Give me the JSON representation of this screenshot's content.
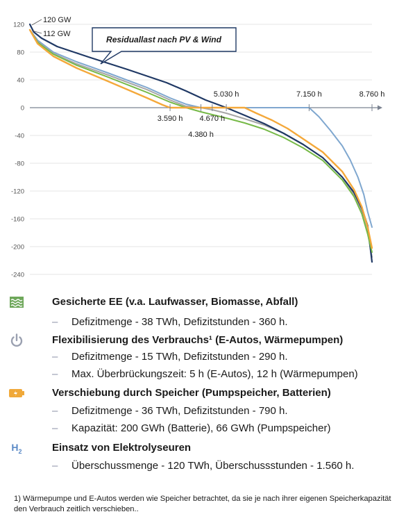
{
  "chart_data": {
    "type": "line",
    "title": "",
    "xlabel": "",
    "ylabel": "",
    "xlim": [
      0,
      8760
    ],
    "ylim": [
      -240,
      120
    ],
    "yticks": [
      120,
      80,
      40,
      0,
      -40,
      -80,
      -120,
      -160,
      -200,
      -240
    ],
    "callout": "Residuallast nach PV & Wind",
    "peak_labels": [
      "120 GW",
      "112 GW"
    ],
    "x_markers": [
      {
        "x": 3590,
        "label": "3.590 h",
        "pos": "below"
      },
      {
        "x": 4380,
        "label": "4.380 h",
        "pos": "below"
      },
      {
        "x": 4670,
        "label": "4.670 h",
        "pos": "below"
      },
      {
        "x": 5030,
        "label": "5.030 h",
        "pos": "above"
      },
      {
        "x": 7150,
        "label": "7.150 h",
        "pos": "above"
      },
      {
        "x": 8760,
        "label": "8.760 h",
        "pos": "above"
      }
    ],
    "series": [
      {
        "color": "#7fa7cf",
        "width": 2,
        "x": [
          0,
          200,
          600,
          1200,
          2000,
          3000,
          3590,
          4000,
          4380,
          4670,
          5030,
          5500,
          6000,
          6500,
          7000,
          7150,
          7400,
          7700,
          8000,
          8200,
          8400,
          8550,
          8650,
          8760
        ],
        "y": [
          112,
          97,
          80,
          66,
          50,
          29,
          14,
          5,
          0,
          0,
          0,
          0,
          0,
          0,
          0,
          0,
          -13,
          -33,
          -55,
          -75,
          -100,
          -125,
          -150,
          -172
        ]
      },
      {
        "color": "#a6a6a6",
        "width": 2,
        "x": [
          0,
          200,
          600,
          1200,
          2000,
          3000,
          3590,
          4000,
          4380,
          4670,
          5030,
          5500,
          6000,
          6500,
          7000,
          7500,
          8000,
          8300,
          8500,
          8650,
          8760
        ],
        "y": [
          112,
          95,
          78,
          63,
          47,
          26,
          11,
          2,
          0,
          -3,
          -8,
          -16,
          -25,
          -37,
          -53,
          -72,
          -100,
          -125,
          -150,
          -180,
          -215
        ]
      },
      {
        "color": "#1f3864",
        "width": 2.2,
        "x": [
          0,
          100,
          300,
          700,
          1500,
          2500,
          3500,
          4000,
          4500,
          5030,
          5500,
          6000,
          6500,
          7000,
          7500,
          8000,
          8300,
          8500,
          8650,
          8760
        ],
        "y": [
          120,
          109,
          100,
          88,
          73,
          55,
          36,
          24,
          11,
          0,
          -11,
          -23,
          -37,
          -53,
          -72,
          -100,
          -122,
          -145,
          -170,
          -222
        ]
      },
      {
        "color": "#76b947",
        "width": 2,
        "x": [
          0,
          200,
          600,
          1200,
          2000,
          3000,
          3590,
          4000,
          4380,
          4670,
          5030,
          5500,
          6000,
          6500,
          7000,
          7500,
          8000,
          8300,
          8500,
          8650,
          8760
        ],
        "y": [
          112,
          94,
          77,
          61,
          44,
          22,
          8,
          0,
          -6,
          -10,
          -15,
          -22,
          -31,
          -43,
          -58,
          -76,
          -104,
          -128,
          -153,
          -182,
          -208
        ]
      },
      {
        "color": "#f4a83a",
        "width": 2.4,
        "x": [
          0,
          200,
          600,
          1200,
          2000,
          3000,
          3400,
          3590,
          4000,
          5030,
          5500,
          5800,
          6200,
          6600,
          7000,
          7500,
          8000,
          8300,
          8500,
          8650,
          8760
        ],
        "y": [
          112,
          92,
          74,
          57,
          38,
          14,
          4,
          0,
          0,
          0,
          0,
          -8,
          -18,
          -30,
          -45,
          -64,
          -92,
          -118,
          -143,
          -172,
          -202
        ]
      }
    ]
  },
  "legend": {
    "items": [
      {
        "heading": "Gesicherte EE (v.a. Laufwasser, Biomasse, Abfall)",
        "subs": [
          "Defizitmenge - 38 TWh, Defizitstunden - 360 h."
        ]
      },
      {
        "heading": "Flexibilisierung des Verbrauchs¹ (E-Autos, Wärmepumpen)",
        "subs": [
          "Defizitmenge - 15 TWh, Defizitstunden - 290 h.",
          "Max. Überbrückungszeit: 5 h (E-Autos), 12 h (Wärmepumpen)"
        ]
      },
      {
        "heading": "Verschiebung durch Speicher (Pumpspeicher, Batterien)",
        "subs": [
          "Defizitmenge - 36 TWh, Defizitstunden - 790 h.",
          "Kapazität: 200 GWh (Batterie), 66 GWh (Pumpspeicher)"
        ]
      },
      {
        "heading": "Einsatz von Elektrolyseuren",
        "subs": [
          "Überschussmenge - 120 TWh, Überschussstunden - 1.560 h."
        ]
      }
    ],
    "dash": "–",
    "h2_main": "H",
    "h2_sub": "2",
    "icon_colors": {
      "ee": "#6ea75a",
      "power": "#9aa0b0",
      "battery": "#f0a93a",
      "h2": "#5b8ac6"
    }
  },
  "footnote": "1) Wärmepumpe und E-Autos werden wie Speicher betrachtet, da sie je nach ihrer eigenen Speicherkapazität den Verbrauch zeitlich verschieben.."
}
